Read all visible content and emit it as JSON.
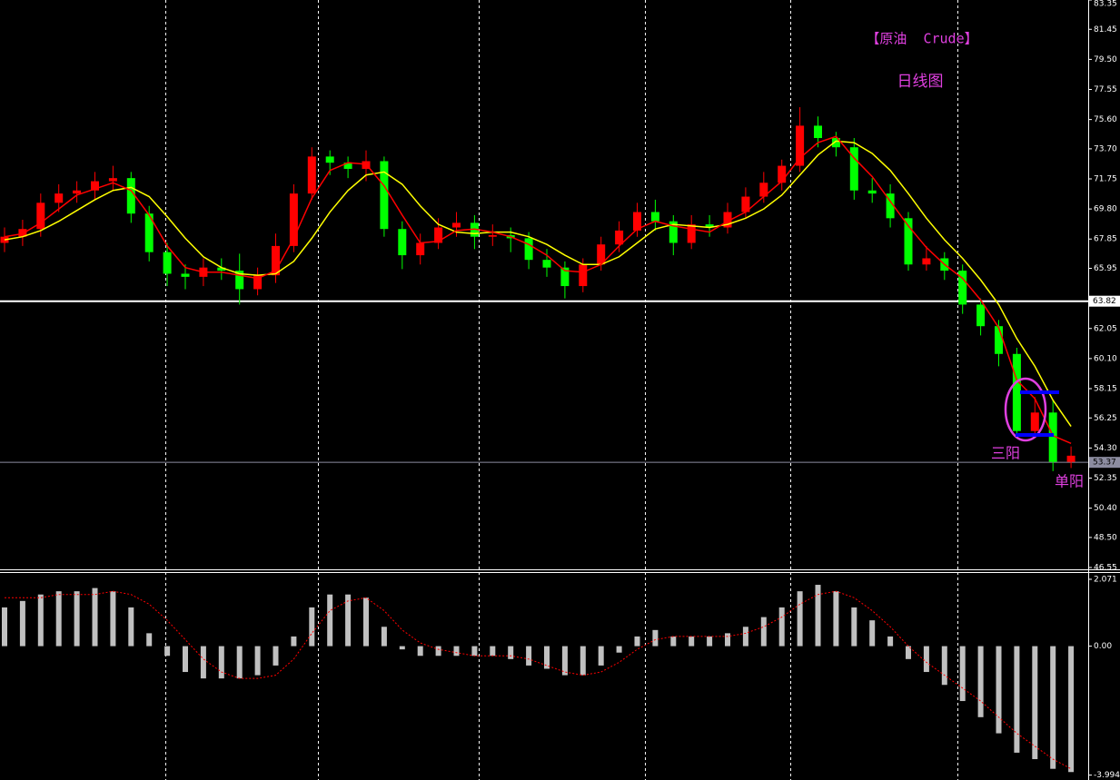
{
  "chart_data": [
    {
      "type": "candlestick",
      "title": "【原油  Crude】",
      "subtitle": "日线图",
      "annotations": [
        "三阳",
        "单阳"
      ],
      "up_color": "#ff0000",
      "down_color": "#00ff00",
      "open": [
        67.6,
        68.0,
        68.5,
        70.2,
        70.8,
        71.0,
        71.6,
        71.8,
        69.5,
        67.0,
        65.6,
        65.4,
        66.0,
        65.8,
        64.6,
        65.5,
        67.4,
        70.8,
        73.2,
        72.8,
        72.4,
        72.9,
        68.5,
        66.8,
        67.6,
        68.6,
        68.9,
        68.0,
        68.1,
        67.9,
        66.5,
        66.0,
        64.8,
        66.2,
        67.5,
        68.4,
        69.6,
        69.0,
        67.6,
        68.8,
        68.6,
        69.6,
        70.6,
        71.5,
        72.6,
        75.2,
        74.4,
        73.8,
        71.0,
        70.8,
        69.2,
        66.2,
        66.6,
        65.8,
        63.6,
        62.2,
        60.4,
        55.4,
        56.6,
        53.4
      ],
      "high": [
        68.6,
        69.1,
        70.8,
        71.4,
        71.6,
        72.2,
        72.6,
        72.2,
        70.0,
        67.6,
        66.2,
        66.6,
        66.6,
        66.9,
        66.0,
        68.2,
        71.4,
        73.8,
        73.6,
        73.2,
        73.6,
        73.2,
        69.0,
        68.2,
        69.2,
        69.6,
        69.4,
        68.8,
        68.6,
        68.3,
        67.2,
        66.4,
        66.6,
        68.0,
        69.0,
        70.2,
        70.4,
        69.4,
        69.4,
        69.4,
        70.2,
        71.2,
        72.2,
        73.0,
        76.4,
        75.8,
        74.8,
        74.4,
        71.8,
        71.4,
        69.6,
        67.4,
        67.0,
        66.2,
        64.0,
        62.6,
        60.8,
        57.6,
        57.4,
        54.4
      ],
      "low": [
        67.0,
        67.4,
        68.0,
        69.6,
        70.2,
        70.4,
        71.0,
        68.9,
        66.4,
        64.8,
        64.6,
        64.8,
        65.2,
        63.6,
        64.2,
        65.0,
        67.0,
        70.4,
        72.0,
        71.8,
        71.6,
        68.0,
        65.9,
        66.2,
        67.2,
        68.0,
        67.2,
        67.4,
        67.0,
        65.9,
        65.4,
        64.0,
        64.4,
        65.8,
        67.0,
        68.0,
        68.4,
        66.8,
        67.2,
        68.0,
        68.2,
        69.2,
        70.2,
        71.0,
        72.2,
        73.8,
        73.2,
        70.4,
        70.2,
        68.6,
        65.8,
        65.8,
        65.2,
        63.0,
        61.6,
        59.6,
        55.0,
        55.0,
        52.8,
        53.0
      ],
      "close": [
        68.0,
        68.5,
        70.2,
        70.8,
        71.0,
        71.6,
        71.8,
        69.5,
        67.0,
        65.6,
        65.4,
        66.0,
        65.8,
        64.6,
        65.5,
        67.4,
        70.8,
        73.2,
        72.8,
        72.4,
        72.9,
        68.5,
        66.8,
        67.6,
        68.6,
        68.9,
        68.0,
        68.1,
        67.9,
        66.5,
        66.0,
        64.8,
        66.2,
        67.5,
        68.4,
        69.6,
        69.0,
        67.6,
        68.8,
        68.6,
        69.6,
        70.6,
        71.5,
        72.6,
        75.2,
        74.4,
        73.8,
        71.0,
        70.8,
        69.2,
        66.2,
        66.6,
        65.8,
        63.6,
        62.2,
        60.4,
        55.4,
        56.6,
        53.4,
        53.8
      ],
      "lines": [
        {
          "color": "#ffff00",
          "values": [
            67.8,
            68.0,
            68.4,
            69.0,
            69.7,
            70.4,
            71.0,
            71.2,
            70.6,
            69.3,
            67.9,
            66.7,
            66.0,
            65.6,
            65.5,
            65.6,
            66.4,
            67.9,
            69.6,
            71.0,
            72.0,
            72.2,
            71.4,
            70.0,
            68.8,
            68.3,
            68.2,
            68.3,
            68.3,
            68.0,
            67.5,
            66.8,
            66.2,
            66.2,
            66.7,
            67.6,
            68.5,
            68.8,
            68.7,
            68.6,
            68.8,
            69.2,
            69.8,
            70.7,
            72.0,
            73.3,
            74.2,
            74.1,
            73.4,
            72.3,
            70.8,
            69.2,
            67.8,
            66.6,
            65.2,
            63.6,
            61.4,
            59.6,
            57.4,
            55.7
          ]
        },
        {
          "color": "#ff0000",
          "values": [
            68.0,
            68.2,
            68.9,
            69.8,
            70.7,
            71.1,
            71.5,
            71.0,
            69.4,
            67.4,
            66.0,
            65.7,
            65.7,
            65.5,
            65.3,
            65.8,
            67.9,
            70.5,
            72.3,
            72.8,
            72.7,
            71.3,
            69.4,
            67.6,
            67.7,
            68.4,
            68.5,
            68.3,
            68.0,
            67.5,
            66.8,
            65.8,
            65.7,
            66.2,
            67.4,
            68.5,
            69.0,
            68.7,
            68.5,
            68.3,
            69.0,
            69.6,
            70.6,
            71.6,
            73.1,
            74.1,
            74.5,
            73.1,
            71.9,
            70.3,
            68.7,
            67.3,
            66.2,
            65.3,
            63.9,
            62.1,
            58.7,
            57.5,
            55.1,
            54.6
          ]
        }
      ],
      "levels": [
        {
          "value": 63.82,
          "color": "#ffffff"
        },
        {
          "value": 53.37,
          "color": "#8c8ca0"
        }
      ],
      "ylim": [
        46.55,
        83.35
      ],
      "yticks": [
        46.55,
        {
          "value": 48.5,
          "label": "48.50"
        },
        {
          "value": 50.4,
          "label": "50.40"
        },
        52.35,
        {
          "value": 54.3,
          "label": "54.30"
        },
        56.25,
        58.15,
        {
          "value": 60.1,
          "label": "60.10"
        },
        62.05,
        65.95,
        67.85,
        {
          "value": 69.8,
          "label": "69.80"
        },
        71.75,
        {
          "value": 73.7,
          "label": "73.70"
        },
        {
          "value": 75.6,
          "label": "75.60"
        },
        77.55,
        {
          "value": 79.5,
          "label": "79.50"
        },
        81.45,
        83.35
      ]
    },
    {
      "type": "macd",
      "color": "#c0c0c0",
      "signal_color": "#ff0000",
      "values": [
        1.2,
        1.4,
        1.6,
        1.7,
        1.7,
        1.8,
        1.7,
        1.2,
        0.4,
        -0.3,
        -0.8,
        -1.0,
        -1.0,
        -1.0,
        -0.9,
        -0.6,
        0.3,
        1.2,
        1.6,
        1.6,
        1.5,
        0.6,
        -0.1,
        -0.3,
        -0.3,
        -0.3,
        -0.3,
        -0.3,
        -0.4,
        -0.6,
        -0.7,
        -0.9,
        -0.9,
        -0.6,
        -0.2,
        0.3,
        0.5,
        0.3,
        0.3,
        0.3,
        0.4,
        0.6,
        0.9,
        1.2,
        1.7,
        1.9,
        1.7,
        1.2,
        0.8,
        0.3,
        -0.4,
        -0.8,
        -1.2,
        -1.7,
        -2.2,
        -2.7,
        -3.3,
        -3.5,
        -3.8,
        -3.9
      ],
      "signal": [
        1.5,
        1.5,
        1.5,
        1.6,
        1.6,
        1.6,
        1.7,
        1.6,
        1.3,
        0.8,
        0.2,
        -0.4,
        -0.8,
        -1.0,
        -1.0,
        -0.9,
        -0.4,
        0.4,
        1.1,
        1.4,
        1.5,
        1.1,
        0.5,
        0.1,
        -0.1,
        -0.2,
        -0.3,
        -0.3,
        -0.3,
        -0.4,
        -0.6,
        -0.8,
        -0.9,
        -0.8,
        -0.5,
        -0.1,
        0.2,
        0.3,
        0.3,
        0.3,
        0.3,
        0.4,
        0.6,
        0.9,
        1.3,
        1.6,
        1.7,
        1.5,
        1.1,
        0.6,
        0.0,
        -0.5,
        -0.9,
        -1.3,
        -1.7,
        -2.2,
        -2.7,
        -3.1,
        -3.5,
        -3.8
      ],
      "ylim": [
        -4.146,
        2.267
      ],
      "yticks": [
        2.071,
        {
          "value": 0,
          "label": "0.00"
        },
        -3.994
      ]
    }
  ]
}
